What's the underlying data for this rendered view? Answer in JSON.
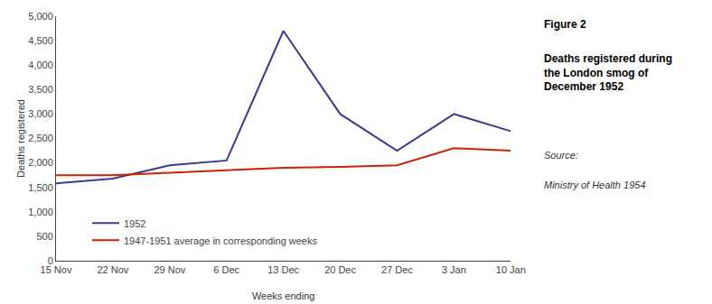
{
  "chart_data": {
    "type": "line",
    "title": "Figure 2",
    "subtitle": "Deaths registered during\nthe London smog of\nDecember 1952",
    "annotations": [
      "Source:",
      "Ministry of Health 1954"
    ],
    "x_label": "Weeks ending",
    "y_label": "Deaths registered",
    "categories": [
      "15 Nov",
      "22 Nov",
      "29 Nov",
      "6 Dec",
      "13 Dec",
      "20 Dec",
      "27 Dec",
      "3 Jan",
      "10 Jan"
    ],
    "series": [
      {
        "name": "1952",
        "color": "#3b3a8c",
        "values": [
          1580,
          1680,
          1950,
          2050,
          4700,
          3000,
          2250,
          3000,
          2650
        ]
      },
      {
        "name": "1947-1951 average in corresponding weeks",
        "color": "#cc2200",
        "values": [
          1750,
          1750,
          1800,
          1850,
          1900,
          1920,
          1950,
          2300,
          2250
        ]
      }
    ],
    "ylim": [
      0,
      5000
    ],
    "yticks": [
      0,
      500,
      {
        "value": 1000,
        "label": "1,000"
      },
      {
        "value": 1500,
        "label": "1,500"
      },
      {
        "value": 2000,
        "label": "2,000"
      },
      {
        "value": 2500,
        "label": "2,500"
      },
      {
        "value": 3000,
        "label": "3,000"
      },
      {
        "value": 3500,
        "label": "3,500"
      },
      {
        "value": 4000,
        "label": "4,000"
      },
      {
        "value": 4500,
        "label": "4,500"
      },
      {
        "value": 5000,
        "label": "5,000"
      }
    ],
    "grid": false,
    "legend": "lower left"
  }
}
